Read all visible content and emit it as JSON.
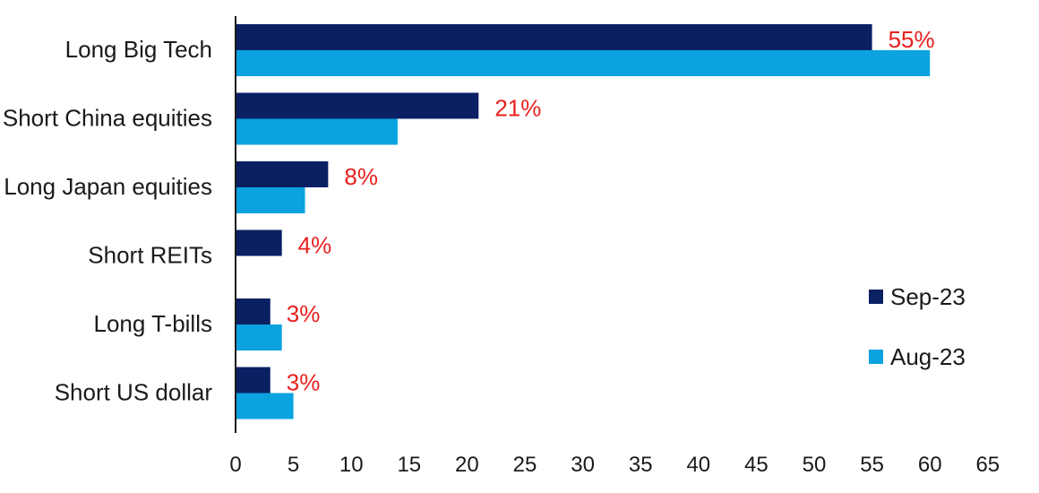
{
  "chart_data": {
    "type": "bar",
    "orientation": "horizontal",
    "title": "",
    "xlabel": "",
    "ylabel": "",
    "xlim": [
      0,
      65
    ],
    "xticks": [
      0,
      5,
      10,
      15,
      20,
      25,
      30,
      35,
      40,
      45,
      50,
      55,
      60,
      65
    ],
    "grid": false,
    "legend_position": "right",
    "categories": [
      "Long Big Tech",
      "Short China equities",
      "Long Japan equities",
      "Short REITs",
      "Long T-bills",
      "Short US dollar"
    ],
    "series": [
      {
        "name": "Sep-23",
        "color": "#0b1f63",
        "values": [
          55,
          21,
          8,
          4,
          3,
          3
        ]
      },
      {
        "name": "Aug-23",
        "color": "#0aa3e0",
        "values": [
          60,
          14,
          6,
          null,
          4,
          5
        ]
      }
    ],
    "data_labels": [
      "55%",
      "21%",
      "8%",
      "4%",
      "3%",
      "3%"
    ],
    "data_label_color": "#e8201f"
  }
}
